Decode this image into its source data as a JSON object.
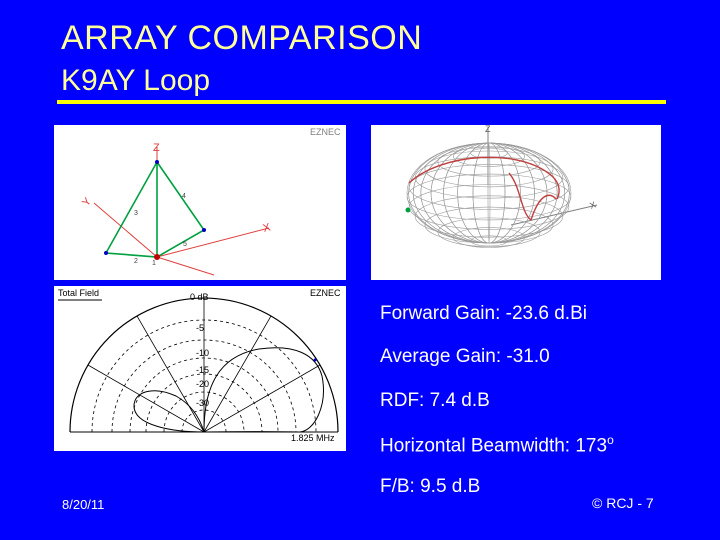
{
  "slide": {
    "title": "ARRAY COMPARISON",
    "subtitle": "K9AY Loop",
    "date": "8/20/11",
    "credit": "© RCJ - 7"
  },
  "panels": {
    "model": {
      "brand": "EZNEC",
      "axis_z": "Z",
      "axis_x": "X",
      "axis_y": "Y",
      "wires": [
        "1",
        "2",
        "3",
        "4",
        "5"
      ]
    },
    "pattern3d": {
      "axis_z": "Z",
      "axis_x": "X"
    },
    "elevation": {
      "header": "Total Field",
      "brand": "EZNEC",
      "rings": [
        "0 dB",
        "-5",
        "-10",
        "-15",
        "-20",
        "-30"
      ],
      "frequency": "1.825 MHz"
    }
  },
  "stats": {
    "forward_gain": "Forward Gain:  -23.6 d.Bi",
    "average_gain": "Average Gain: -31.0",
    "rdf": "RDF: 7.4 d.B",
    "beamwidth": "Horizontal Beamwidth: 173",
    "beamwidth_unit": "o",
    "fb": "F/B: 9.5 d.B"
  },
  "colors": {
    "background": "#0000ff",
    "title": "#ffff99",
    "rule": "#ffff00",
    "wire": "#00a040",
    "axis": "#e04040",
    "pattern": "#c04040"
  }
}
